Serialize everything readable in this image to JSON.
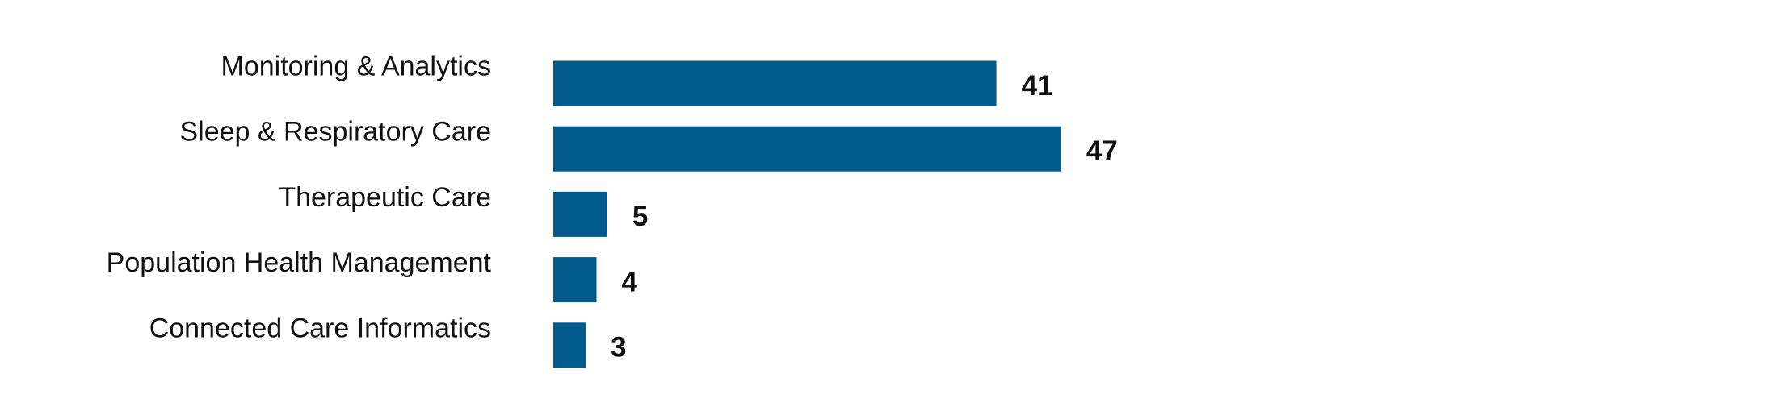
{
  "chart_data": {
    "type": "bar",
    "orientation": "horizontal",
    "categories": [
      "Monitoring & Analytics",
      "Sleep & Respiratory Care",
      "Therapeutic Care",
      "Population Health Management",
      "Connected Care Informatics"
    ],
    "values": [
      41,
      47,
      5,
      4,
      3
    ],
    "color": "#005a8c"
  }
}
